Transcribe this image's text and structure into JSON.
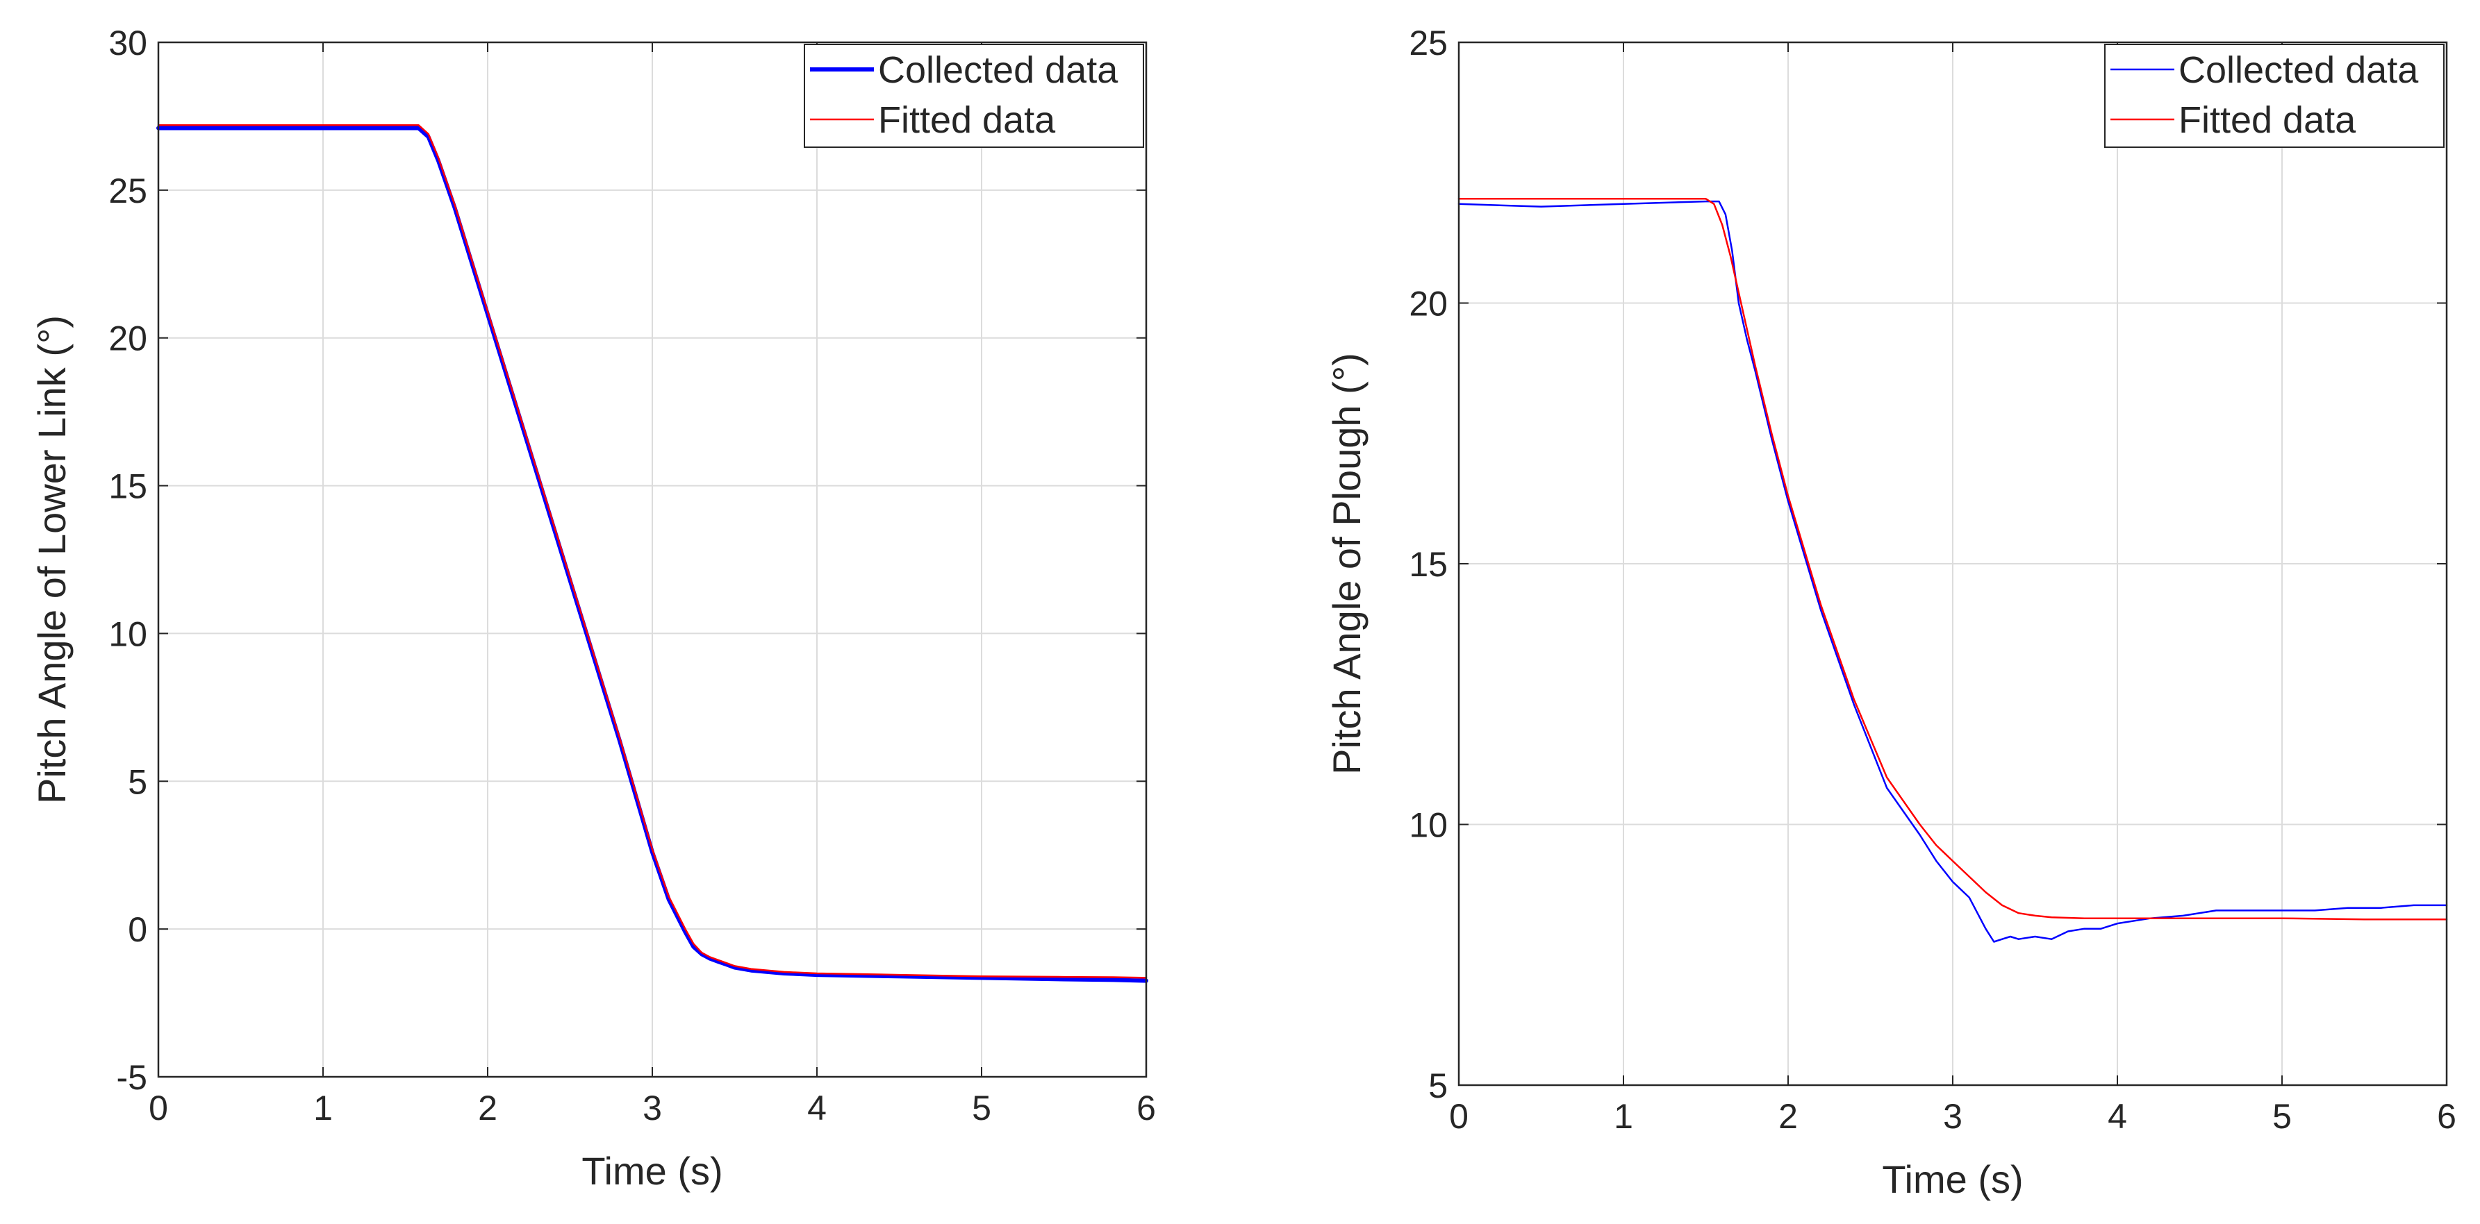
{
  "chart_data": [
    {
      "type": "line",
      "title": "",
      "xlabel": "Time (s)",
      "ylabel": "Pitch Angle of Lower Link (°)",
      "xlim": [
        0,
        6
      ],
      "ylim": [
        -5,
        30
      ],
      "xticks": [
        0,
        1,
        2,
        3,
        4,
        5,
        6
      ],
      "yticks": [
        -5,
        0,
        5,
        10,
        15,
        20,
        25,
        30
      ],
      "xtick_labels": [
        "0",
        "1",
        "2",
        "3",
        "4",
        "5",
        "6"
      ],
      "ytick_labels": [
        "-5",
        "0",
        "5",
        "10",
        "15",
        "20",
        "25",
        "30"
      ],
      "grid": true,
      "legend_position": "top-right",
      "series": [
        {
          "name": "Collected data",
          "color": "#0000ff",
          "width": "thick",
          "x": [
            0,
            0.5,
            1.0,
            1.5,
            1.58,
            1.64,
            1.7,
            1.8,
            1.9,
            2.0,
            2.2,
            2.4,
            2.6,
            2.8,
            3.0,
            3.1,
            3.2,
            3.25,
            3.3,
            3.35,
            3.4,
            3.45,
            3.5,
            3.6,
            3.8,
            4.0,
            4.5,
            5.0,
            5.5,
            5.8,
            6.0
          ],
          "y": [
            27.1,
            27.1,
            27.1,
            27.1,
            27.1,
            26.8,
            26.0,
            24.4,
            22.6,
            20.8,
            17.2,
            13.6,
            10.0,
            6.4,
            2.6,
            1.0,
            -0.1,
            -0.6,
            -0.85,
            -1.0,
            -1.1,
            -1.2,
            -1.3,
            -1.4,
            -1.5,
            -1.55,
            -1.6,
            -1.65,
            -1.7,
            -1.72,
            -1.75
          ]
        },
        {
          "name": "Fitted data",
          "color": "#ff0000",
          "width": "thin",
          "x": [
            0,
            0.5,
            1.0,
            1.5,
            1.58,
            1.64,
            1.7,
            1.8,
            1.9,
            2.0,
            2.2,
            2.4,
            2.6,
            2.8,
            3.0,
            3.1,
            3.2,
            3.25,
            3.3,
            3.35,
            3.4,
            3.45,
            3.5,
            3.6,
            3.8,
            4.0,
            4.5,
            5.0,
            5.5,
            5.8,
            6.0
          ],
          "y": [
            27.2,
            27.2,
            27.2,
            27.2,
            27.2,
            26.9,
            26.1,
            24.5,
            22.7,
            20.9,
            17.3,
            13.7,
            10.1,
            6.5,
            2.7,
            1.1,
            0.0,
            -0.5,
            -0.8,
            -0.95,
            -1.05,
            -1.15,
            -1.25,
            -1.35,
            -1.45,
            -1.5,
            -1.55,
            -1.6,
            -1.62,
            -1.63,
            -1.65
          ]
        }
      ]
    },
    {
      "type": "line",
      "title": "",
      "xlabel": "Time (s)",
      "ylabel": "Pitch Angle of Plough (°)",
      "xlim": [
        0,
        6
      ],
      "ylim": [
        5,
        25
      ],
      "xticks": [
        0,
        1,
        2,
        3,
        4,
        5,
        6
      ],
      "yticks": [
        5,
        10,
        15,
        20,
        25
      ],
      "xtick_labels": [
        "0",
        "1",
        "2",
        "3",
        "4",
        "5",
        "6"
      ],
      "ytick_labels": [
        "5",
        "10",
        "15",
        "20",
        "25"
      ],
      "grid": true,
      "legend_position": "top-right",
      "series": [
        {
          "name": "Collected data",
          "color": "#0000ff",
          "width": "thin",
          "x": [
            0,
            0.5,
            1.0,
            1.5,
            1.58,
            1.62,
            1.66,
            1.7,
            1.75,
            1.8,
            1.9,
            2.0,
            2.2,
            2.4,
            2.6,
            2.8,
            2.9,
            3.0,
            3.1,
            3.2,
            3.25,
            3.3,
            3.35,
            3.4,
            3.5,
            3.6,
            3.7,
            3.8,
            3.9,
            4.0,
            4.2,
            4.4,
            4.6,
            4.8,
            5.0,
            5.2,
            5.4,
            5.6,
            5.8,
            6.0
          ],
          "y": [
            21.9,
            21.85,
            21.9,
            21.95,
            21.95,
            21.7,
            21.0,
            20.0,
            19.3,
            18.7,
            17.4,
            16.2,
            14.1,
            12.3,
            10.7,
            9.8,
            9.3,
            8.9,
            8.6,
            8.0,
            7.75,
            7.8,
            7.85,
            7.8,
            7.85,
            7.8,
            7.95,
            8.0,
            8.0,
            8.1,
            8.2,
            8.25,
            8.35,
            8.35,
            8.35,
            8.35,
            8.4,
            8.4,
            8.45,
            8.45
          ]
        },
        {
          "name": "Fitted data",
          "color": "#ff0000",
          "width": "thin",
          "x": [
            0,
            0.5,
            1.0,
            1.5,
            1.55,
            1.6,
            1.65,
            1.7,
            1.8,
            1.9,
            2.0,
            2.2,
            2.4,
            2.6,
            2.8,
            2.9,
            3.0,
            3.1,
            3.2,
            3.3,
            3.4,
            3.5,
            3.6,
            3.8,
            4.0,
            4.5,
            5.0,
            5.5,
            6.0
          ],
          "y": [
            22.0,
            22.0,
            22.0,
            22.0,
            21.9,
            21.5,
            20.9,
            20.2,
            18.8,
            17.5,
            16.3,
            14.2,
            12.4,
            10.9,
            10.0,
            9.6,
            9.3,
            9.0,
            8.7,
            8.45,
            8.3,
            8.25,
            8.22,
            8.2,
            8.2,
            8.2,
            8.2,
            8.18,
            8.18
          ]
        }
      ]
    }
  ]
}
